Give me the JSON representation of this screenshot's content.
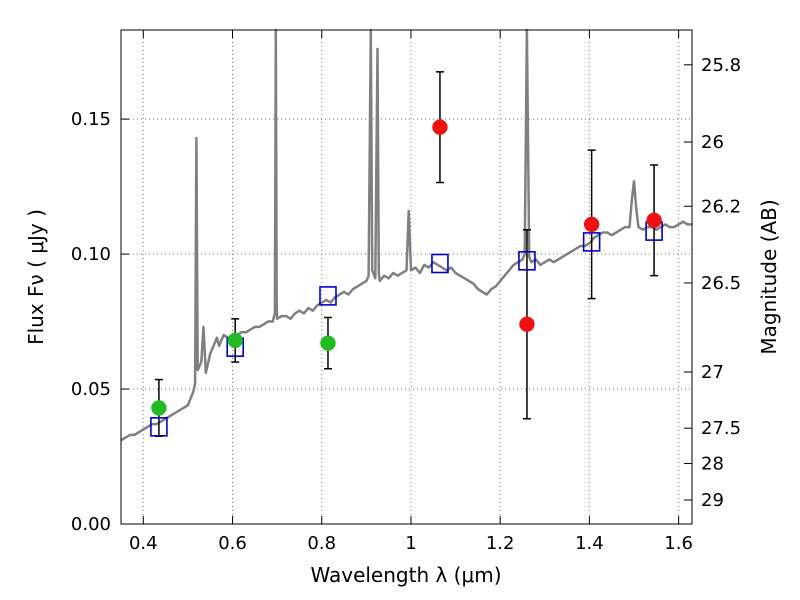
{
  "chart_data": {
    "type": "scatter",
    "xlabel": "Wavelength  λ (μm)",
    "ylabel": "Flux  Fν  ( μJy )",
    "ylabel_right": "Magnitude (AB)",
    "xlim": [
      0.35,
      1.63
    ],
    "ylim": [
      0.0,
      0.183
    ],
    "grid": true,
    "x_ticks": [
      0.4,
      0.6,
      0.8,
      1.0,
      1.2,
      1.4,
      1.6
    ],
    "x_tick_labels": [
      "0.4",
      "0.6",
      "0.8",
      "1",
      "1.2",
      "1.4",
      "1.6"
    ],
    "y_ticks": [
      0.0,
      0.05,
      0.1,
      0.15
    ],
    "y_tick_labels": [
      "0.00",
      "0.05",
      "0.10",
      "0.15"
    ],
    "right_ticks": [
      {
        "label": "25.8",
        "flux": 0.1701
      },
      {
        "label": "26",
        "flux": 0.1415
      },
      {
        "label": "26.2",
        "flux": 0.1177
      },
      {
        "label": "26.5",
        "flux": 0.0893
      },
      {
        "label": "27",
        "flux": 0.0563
      },
      {
        "label": "27.5",
        "flux": 0.0355
      },
      {
        "label": "28",
        "flux": 0.0224
      },
      {
        "label": "29",
        "flux": 0.0089
      }
    ],
    "series": [
      {
        "marker": "circle",
        "color": "#22bb22",
        "points": [
          {
            "x": 0.435,
            "y": 0.043,
            "err": 0.0105
          },
          {
            "x": 0.606,
            "y": 0.068,
            "err": 0.008
          },
          {
            "x": 0.814,
            "y": 0.067,
            "err": 0.0095
          }
        ]
      },
      {
        "marker": "circle",
        "color": "#ee1111",
        "points": [
          {
            "x": 1.065,
            "y": 0.147,
            "err": 0.0205
          },
          {
            "x": 1.26,
            "y": 0.074,
            "err": 0.035
          },
          {
            "x": 1.405,
            "y": 0.111,
            "err": 0.0275
          },
          {
            "x": 1.545,
            "y": 0.1125,
            "err": 0.0205
          }
        ]
      },
      {
        "marker": "square-open",
        "color": "#0000cc",
        "points": [
          {
            "x": 0.435,
            "y": 0.036
          },
          {
            "x": 0.606,
            "y": 0.0655
          },
          {
            "x": 0.814,
            "y": 0.0845
          },
          {
            "x": 1.065,
            "y": 0.0965
          },
          {
            "x": 1.26,
            "y": 0.0975
          },
          {
            "x": 1.405,
            "y": 0.1045
          },
          {
            "x": 1.545,
            "y": 0.1085
          }
        ]
      },
      {
        "marker": "line",
        "color": "#808080",
        "points": [
          [
            0.35,
            0.031
          ],
          [
            0.36,
            0.032
          ],
          [
            0.37,
            0.033
          ],
          [
            0.38,
            0.033
          ],
          [
            0.39,
            0.034
          ],
          [
            0.4,
            0.035
          ],
          [
            0.41,
            0.036
          ],
          [
            0.42,
            0.037
          ],
          [
            0.43,
            0.037
          ],
          [
            0.44,
            0.038
          ],
          [
            0.45,
            0.039
          ],
          [
            0.46,
            0.04
          ],
          [
            0.47,
            0.041
          ],
          [
            0.48,
            0.042
          ],
          [
            0.49,
            0.043
          ],
          [
            0.5,
            0.044
          ],
          [
            0.505,
            0.046
          ],
          [
            0.512,
            0.049
          ],
          [
            0.516,
            0.052
          ],
          [
            0.519,
            0.143
          ],
          [
            0.522,
            0.057
          ],
          [
            0.53,
            0.06
          ],
          [
            0.535,
            0.073
          ],
          [
            0.54,
            0.056
          ],
          [
            0.55,
            0.063
          ],
          [
            0.56,
            0.067
          ],
          [
            0.565,
            0.069
          ],
          [
            0.57,
            0.066
          ],
          [
            0.58,
            0.07
          ],
          [
            0.59,
            0.069
          ],
          [
            0.6,
            0.068
          ],
          [
            0.61,
            0.07
          ],
          [
            0.62,
            0.071
          ],
          [
            0.63,
            0.071
          ],
          [
            0.64,
            0.072
          ],
          [
            0.65,
            0.073
          ],
          [
            0.66,
            0.073
          ],
          [
            0.67,
            0.074
          ],
          [
            0.68,
            0.075
          ],
          [
            0.69,
            0.075
          ],
          [
            0.695,
            0.078
          ],
          [
            0.697,
            0.183
          ],
          [
            0.699,
            0.082
          ],
          [
            0.7,
            0.076
          ],
          [
            0.71,
            0.077
          ],
          [
            0.72,
            0.077
          ],
          [
            0.73,
            0.076
          ],
          [
            0.74,
            0.078
          ],
          [
            0.75,
            0.079
          ],
          [
            0.76,
            0.078
          ],
          [
            0.77,
            0.08
          ],
          [
            0.78,
            0.079
          ],
          [
            0.79,
            0.081
          ],
          [
            0.8,
            0.082
          ],
          [
            0.81,
            0.083
          ],
          [
            0.82,
            0.082
          ],
          [
            0.83,
            0.084
          ],
          [
            0.84,
            0.085
          ],
          [
            0.85,
            0.086
          ],
          [
            0.86,
            0.085
          ],
          [
            0.87,
            0.087
          ],
          [
            0.88,
            0.088
          ],
          [
            0.89,
            0.089
          ],
          [
            0.9,
            0.09
          ],
          [
            0.905,
            0.092
          ],
          [
            0.91,
            0.183
          ],
          [
            0.913,
            0.094
          ],
          [
            0.92,
            0.091
          ],
          [
            0.925,
            0.176
          ],
          [
            0.928,
            0.093
          ],
          [
            0.93,
            0.09
          ],
          [
            0.94,
            0.092
          ],
          [
            0.95,
            0.091
          ],
          [
            0.96,
            0.093
          ],
          [
            0.97,
            0.092
          ],
          [
            0.98,
            0.093
          ],
          [
            0.99,
            0.094
          ],
          [
            0.995,
            0.116
          ],
          [
            1.0,
            0.094
          ],
          [
            1.01,
            0.095
          ],
          [
            1.02,
            0.093
          ],
          [
            1.03,
            0.096
          ],
          [
            1.04,
            0.095
          ],
          [
            1.05,
            0.097
          ],
          [
            1.06,
            0.096
          ],
          [
            1.07,
            0.095
          ],
          [
            1.08,
            0.094
          ],
          [
            1.09,
            0.095
          ],
          [
            1.1,
            0.093
          ],
          [
            1.11,
            0.092
          ],
          [
            1.12,
            0.091
          ],
          [
            1.13,
            0.09
          ],
          [
            1.14,
            0.089
          ],
          [
            1.15,
            0.087
          ],
          [
            1.16,
            0.086
          ],
          [
            1.17,
            0.085
          ],
          [
            1.18,
            0.087
          ],
          [
            1.19,
            0.088
          ],
          [
            1.2,
            0.09
          ],
          [
            1.21,
            0.092
          ],
          [
            1.22,
            0.094
          ],
          [
            1.23,
            0.096
          ],
          [
            1.24,
            0.097
          ],
          [
            1.25,
            0.098
          ],
          [
            1.255,
            0.1
          ],
          [
            1.26,
            0.183
          ],
          [
            1.265,
            0.099
          ],
          [
            1.27,
            0.097
          ],
          [
            1.28,
            0.098
          ],
          [
            1.29,
            0.096
          ],
          [
            1.3,
            0.097
          ],
          [
            1.31,
            0.098
          ],
          [
            1.32,
            0.097
          ],
          [
            1.33,
            0.098
          ],
          [
            1.34,
            0.099
          ],
          [
            1.35,
            0.1
          ],
          [
            1.36,
            0.101
          ],
          [
            1.37,
            0.102
          ],
          [
            1.38,
            0.103
          ],
          [
            1.39,
            0.103
          ],
          [
            1.4,
            0.104
          ],
          [
            1.41,
            0.106
          ],
          [
            1.42,
            0.107
          ],
          [
            1.43,
            0.108
          ],
          [
            1.44,
            0.108
          ],
          [
            1.45,
            0.107
          ],
          [
            1.46,
            0.108
          ],
          [
            1.47,
            0.109
          ],
          [
            1.48,
            0.11
          ],
          [
            1.49,
            0.11
          ],
          [
            1.495,
            0.12
          ],
          [
            1.5,
            0.127
          ],
          [
            1.505,
            0.117
          ],
          [
            1.51,
            0.11
          ],
          [
            1.52,
            0.109
          ],
          [
            1.53,
            0.11
          ],
          [
            1.54,
            0.11
          ],
          [
            1.55,
            0.109
          ],
          [
            1.56,
            0.11
          ],
          [
            1.57,
            0.111
          ],
          [
            1.58,
            0.11
          ],
          [
            1.59,
            0.11
          ],
          [
            1.6,
            0.111
          ],
          [
            1.61,
            0.112
          ],
          [
            1.62,
            0.111
          ],
          [
            1.63,
            0.111
          ]
        ]
      }
    ]
  }
}
